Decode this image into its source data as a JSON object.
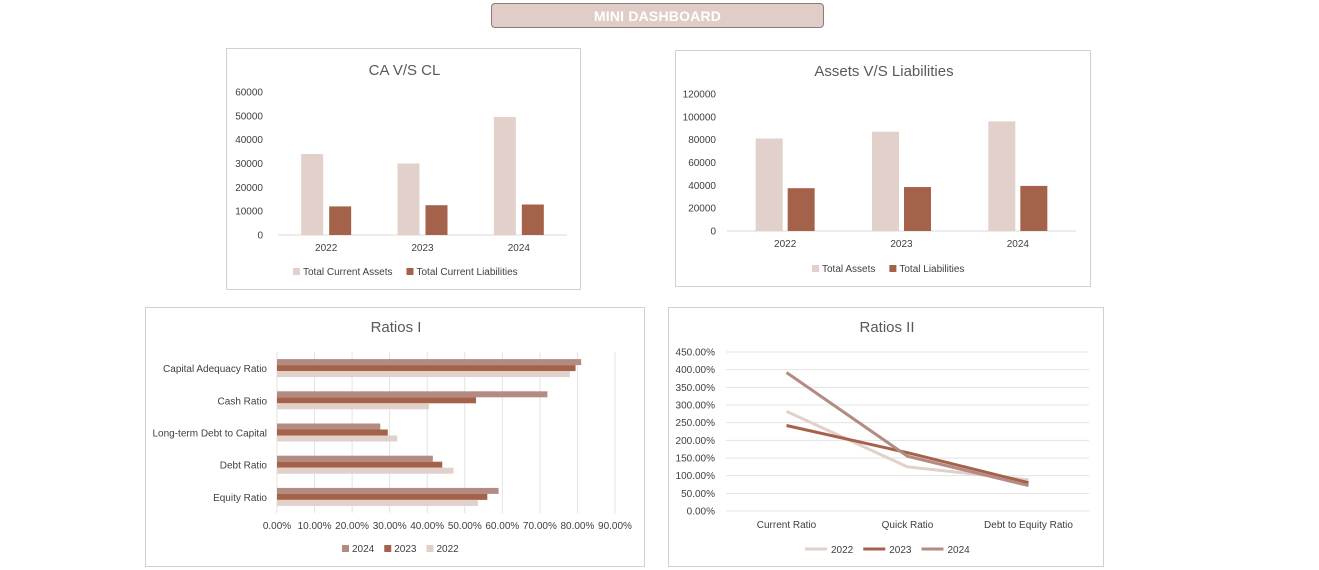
{
  "header": {
    "title": "MINI DASHBOARD"
  },
  "colors": {
    "light": "#e2d0cb",
    "dark": "#a5624a",
    "mid": "#b38b82",
    "banner": "#e0cdc8"
  },
  "chart_data": [
    {
      "type": "bar",
      "title": "CA V/S CL",
      "categories": [
        "2022",
        "2023",
        "2024"
      ],
      "series": [
        {
          "name": "Total Current Assets",
          "values": [
            34000,
            30000,
            49500
          ]
        },
        {
          "name": "Total Current Liabilities",
          "values": [
            12000,
            12500,
            12800
          ]
        }
      ],
      "ylim": [
        0,
        60000
      ],
      "yticks": [
        "0",
        "10000",
        "20000",
        "30000",
        "40000",
        "50000",
        "60000"
      ],
      "legend": "bottom"
    },
    {
      "type": "bar",
      "title": "Assets V/S Liabilities",
      "categories": [
        "2022",
        "2023",
        "2024"
      ],
      "series": [
        {
          "name": "Total Assets",
          "values": [
            81000,
            87000,
            96000
          ]
        },
        {
          "name": "Total Liabilities",
          "values": [
            37500,
            38500,
            39500
          ]
        }
      ],
      "ylim": [
        0,
        120000
      ],
      "yticks": [
        "0",
        "20000",
        "40000",
        "60000",
        "80000",
        "100000",
        "120000"
      ],
      "legend": "bottom"
    },
    {
      "type": "bar",
      "orientation": "horizontal",
      "title": "Ratios I",
      "categories": [
        "Capital Adequacy Ratio",
        "Cash Ratio",
        "Long-term Debt to Capital",
        "Debt Ratio",
        "Equity Ratio"
      ],
      "series": [
        {
          "name": "2024",
          "values": [
            81,
            72,
            27.5,
            41.5,
            59
          ]
        },
        {
          "name": "2023",
          "values": [
            79.5,
            53,
            29.5,
            44,
            56
          ]
        },
        {
          "name": "2022",
          "values": [
            78,
            40.5,
            32,
            47,
            53.5
          ]
        }
      ],
      "xlim": [
        0,
        90
      ],
      "xticks": [
        "0.00%",
        "10.00%",
        "20.00%",
        "30.00%",
        "40.00%",
        "50.00%",
        "60.00%",
        "70.00%",
        "80.00%",
        "90.00%"
      ],
      "legend": "bottom"
    },
    {
      "type": "line",
      "title": "Ratios II",
      "categories": [
        "Current Ratio",
        "Quick Ratio",
        "Debt to Equity Ratio"
      ],
      "series": [
        {
          "name": "2022",
          "values": [
            282,
            125,
            88
          ]
        },
        {
          "name": "2023",
          "values": [
            242,
            165,
            80
          ]
        },
        {
          "name": "2024",
          "values": [
            392,
            155,
            72
          ]
        }
      ],
      "ylim": [
        0,
        450
      ],
      "yticks": [
        "0.00%",
        "50.00%",
        "100.00%",
        "150.00%",
        "200.00%",
        "250.00%",
        "300.00%",
        "350.00%",
        "400.00%",
        "450.00%"
      ],
      "legend": "bottom"
    }
  ]
}
